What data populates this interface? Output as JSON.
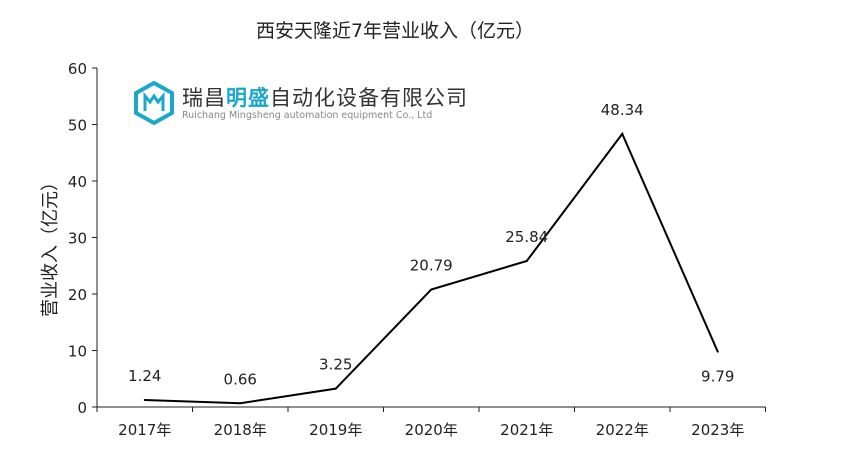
{
  "chart_data": {
    "type": "line",
    "title": "西安天隆近7年营业收入（亿元）",
    "xlabel": "",
    "ylabel": "营业收入（亿元）",
    "categories": [
      "2017年",
      "2018年",
      "2019年",
      "2020年",
      "2021年",
      "2022年",
      "2023年"
    ],
    "values": [
      1.24,
      0.66,
      3.25,
      20.79,
      25.84,
      48.34,
      9.79
    ],
    "data_labels": [
      "1.24",
      "0.66",
      "3.25",
      "20.79",
      "25.84",
      "48.34",
      "9.79"
    ],
    "ylim": [
      0,
      60
    ],
    "yticks": [
      "0",
      "10",
      "20",
      "30",
      "40",
      "50",
      "60"
    ],
    "grid": false,
    "line_color": "#000000"
  },
  "watermark": {
    "name_part1": "瑞昌",
    "name_highlight": "明盛",
    "name_part2": "自动化设备有限公司",
    "english": "Ruichang Mingsheng automation equipment Co., Ltd",
    "accent": "#1aa7c9"
  }
}
